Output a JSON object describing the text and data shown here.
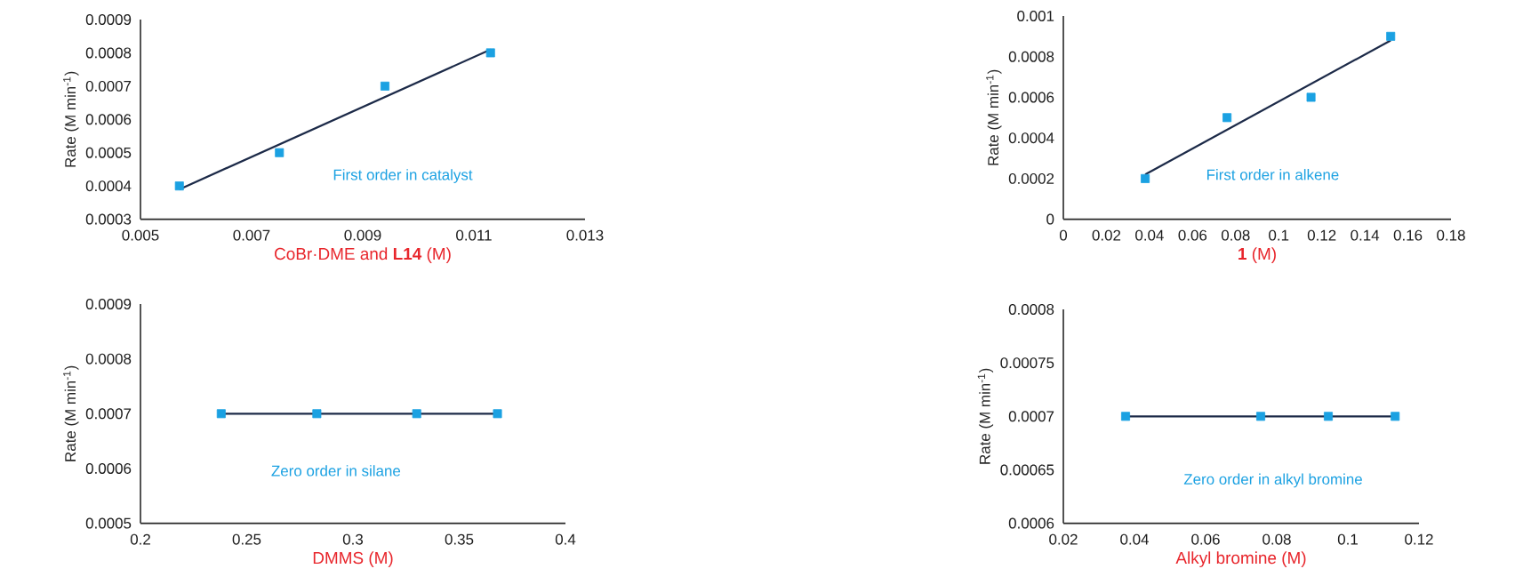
{
  "chart_data": [
    {
      "type": "scatter",
      "xlabel": "CoBr·DME and **L14** (M)",
      "ylabel": "Rate (M min$^{-1}$)",
      "annotations": [
        "First order in catalyst"
      ],
      "xlim": [
        0.005,
        0.013
      ],
      "xticks": [
        0.005,
        0.007,
        0.009,
        0.011,
        0.013
      ],
      "ylim": [
        0.0003,
        0.0009
      ],
      "yticks": [
        0.0003,
        0.0004,
        0.0005,
        0.0006,
        0.0007,
        0.0008,
        0.0009
      ],
      "series": [
        {
          "type": "scatter",
          "color": "#1ba1e2",
          "marker": "square",
          "x": [
            0.0057,
            0.0075,
            0.0094,
            0.0113
          ],
          "values": [
            0.0004,
            0.0005,
            0.0007,
            0.0008
          ]
        },
        {
          "type": "line",
          "color": "#1c2a48",
          "marker": "none",
          "x": [
            0.0057,
            0.0113
          ],
          "values": [
            0.00039,
            0.00081
          ]
        }
      ]
    },
    {
      "type": "scatter",
      "xlabel": "**1** (M)",
      "ylabel": "Rate (M min$^{-1}$)",
      "annotations": [
        "First order in alkene"
      ],
      "xlim": [
        0,
        0.18
      ],
      "xticks": [
        0,
        0.02,
        0.04,
        0.06,
        0.08,
        0.1,
        0.12,
        0.14,
        0.16,
        0.18
      ],
      "ylim": [
        0,
        0.001
      ],
      "yticks": [
        0,
        0.0002,
        0.0004,
        0.0006,
        0.0008,
        0.001
      ],
      "series": [
        {
          "type": "scatter",
          "color": "#1ba1e2",
          "marker": "square",
          "x": [
            0.038,
            0.076,
            0.115,
            0.152
          ],
          "values": [
            0.0002,
            0.0005,
            0.0006,
            0.0009
          ]
        },
        {
          "type": "line",
          "color": "#1c2a48",
          "marker": "none",
          "x": [
            0.038,
            0.152
          ],
          "values": [
            0.00022,
            0.00088
          ]
        }
      ]
    },
    {
      "type": "scatter",
      "xlabel": "DMMS (M)",
      "ylabel": "Rate (M min$^{-1}$)",
      "annotations": [
        "Zero order in silane"
      ],
      "xlim": [
        0.2,
        0.4
      ],
      "xticks": [
        0.2,
        0.25,
        0.3,
        0.35,
        0.4
      ],
      "ylim": [
        0.0005,
        0.0009
      ],
      "yticks": [
        0.0005,
        0.0006,
        0.0007,
        0.0008,
        0.0009
      ],
      "series": [
        {
          "type": "scatter",
          "color": "#1ba1e2",
          "marker": "square",
          "x": [
            0.238,
            0.283,
            0.33,
            0.368
          ],
          "values": [
            0.0007,
            0.0007,
            0.0007,
            0.0007
          ]
        },
        {
          "type": "line",
          "color": "#1c2a48",
          "marker": "none",
          "x": [
            0.238,
            0.368
          ],
          "values": [
            0.0007,
            0.0007
          ]
        }
      ]
    },
    {
      "type": "scatter",
      "xlabel": "Alkyl bromine (M)",
      "ylabel": "Rate (M min$^{-1}$)",
      "annotations": [
        "Zero order in alkyl bromine"
      ],
      "xlim": [
        0.02,
        0.12
      ],
      "xticks": [
        0.02,
        0.04,
        0.06,
        0.08,
        0.1,
        0.12
      ],
      "ylim": [
        0.0006,
        0.0008
      ],
      "yticks": [
        0.0006,
        0.00065,
        0.0007,
        0.00075,
        0.0008
      ],
      "series": [
        {
          "type": "scatter",
          "color": "#1ba1e2",
          "marker": "square",
          "x": [
            0.0375,
            0.0755,
            0.0945,
            0.1133
          ],
          "values": [
            0.0007,
            0.0007,
            0.0007,
            0.0007
          ]
        },
        {
          "type": "line",
          "color": "#1c2a48",
          "marker": "none",
          "x": [
            0.0375,
            0.1133
          ],
          "values": [
            0.0007,
            0.0007
          ]
        }
      ]
    }
  ]
}
